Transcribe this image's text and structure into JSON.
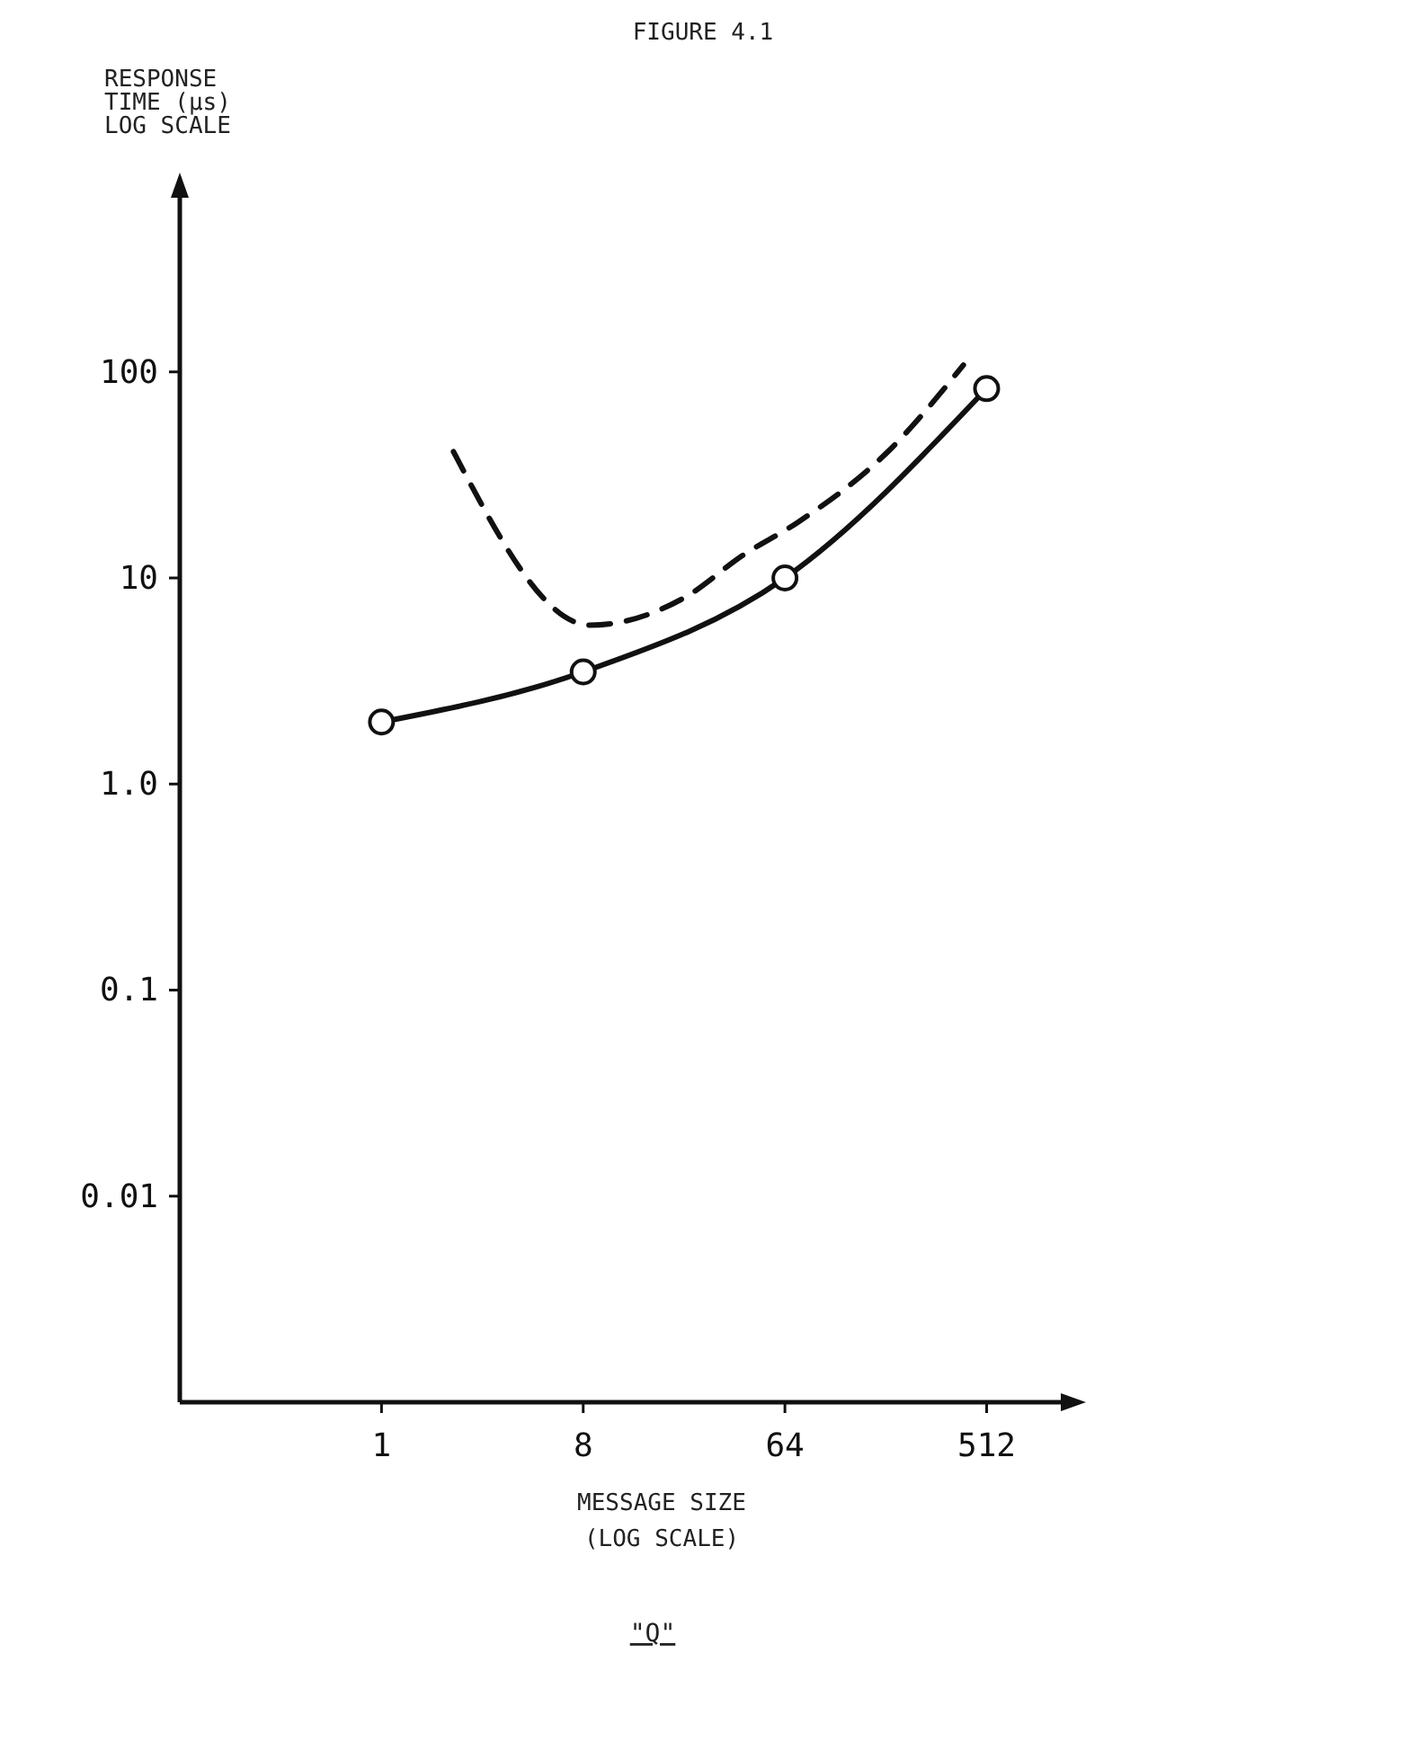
{
  "chart_data": {
    "type": "line",
    "title": "FIGURE 4.1",
    "ylabel": "RESPONSE\nTIME (µs)\nLOG SCALE",
    "xlabel": "MESSAGE SIZE\n(LOG SCALE)",
    "annotations": [
      "\"Q\""
    ],
    "log": "xy",
    "xlim": [
      0.125,
      1100
    ],
    "ylim": [
      0.001,
      700
    ],
    "xticks": [
      1,
      8,
      64,
      512
    ],
    "yticks": [
      {
        "value": 0.01,
        "label": "0.01"
      },
      {
        "value": 0.1,
        "label": "0.1"
      },
      {
        "value": 1,
        "label": "1.0"
      },
      {
        "value": 10,
        "label": "10"
      },
      {
        "value": 100,
        "label": "100"
      }
    ],
    "grid": false,
    "series": [
      {
        "color": "#111111",
        "marker": "circle",
        "line_style": "solid",
        "x": [
          1,
          8,
          64,
          512
        ],
        "values": [
          2.0,
          3.5,
          10,
          83
        ]
      },
      {
        "color": "#111111",
        "marker": "none",
        "line_style": "dashed",
        "x": [
          2.1,
          8.6,
          22.6,
          42,
          73,
          185,
          403
        ],
        "values": [
          41,
          5.9,
          8,
          13,
          18.6,
          41,
          108
        ]
      }
    ]
  }
}
